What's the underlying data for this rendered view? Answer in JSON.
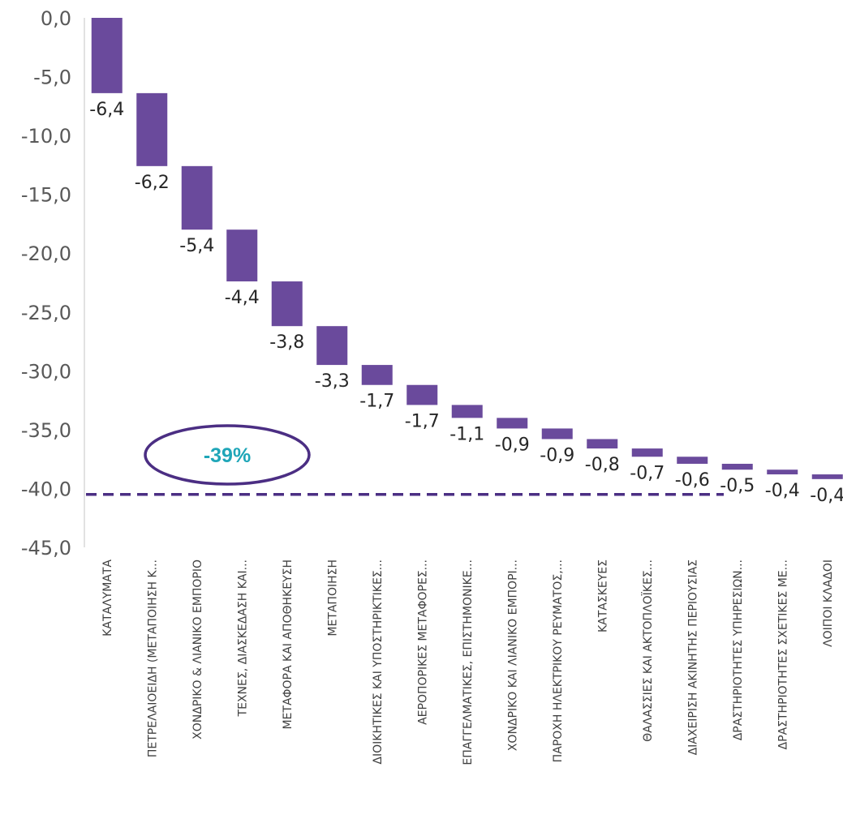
{
  "chart_data": {
    "type": "bar",
    "subtype": "waterfall",
    "title": "",
    "xlabel": "",
    "ylabel": "",
    "ylim": [
      -45,
      0
    ],
    "ytick_step": 5,
    "ytick_labels": [
      "0,0",
      "-5,0",
      "-10,0",
      "-15,0",
      "-20,0",
      "-25,0",
      "-30,0",
      "-35,0",
      "-40,0",
      "-45,0"
    ],
    "categories": [
      "ΚΑΤΑΛΥΜΑΤΑ",
      "ΠΕΤΡΕΛΑΙΟΕΙΔΗ (ΜΕΤΑΠΟΙΗΣΗ Κ...",
      "ΧΟΝΔΡΙΚΟ & ΛΙΑΝΙΚΟ ΕΜΠΟΡΙΟ",
      "ΤΕΧΝΕΣ, ΔΙΑΣΚΕΔΑΣΗ ΚΑΙ...",
      "ΜΕΤΑΦΟΡΑ ΚΑΙ ΑΠΟΘΗΚΕΥΣΗ",
      "ΜΕΤΑΠΟΙΗΣΗ",
      "ΔΙΟΙΚΗΤΙΚΕΣ ΚΑΙ ΥΠΟΣΤΗΡΙΚΤΙΚΕΣ...",
      "ΑΕΡΟΠΟΡΙΚΕΣ ΜΕΤΑΦΟΡΕΣ...",
      "ΕΠΑΓΓΕΛΜΑΤΙΚΕΣ, ΕΠΙΣΤΗΜΟΝΙΚΕ...",
      "ΧΟΝΔΡΙΚΟ ΚΑΙ ΛΙΑΝΙΚΟ ΕΜΠΟΡΙ...",
      "ΠΑΡΟΧΗ ΗΛΕΚΤΡΙΚΟΥ ΡΕΥΜΑΤΟΣ,...",
      "ΚΑΤΑΣΚΕΥΕΣ",
      "ΘΑΛΑΣΣΙΕΣ ΚΑΙ ΑΚΤΟΠΛΟΪΚΕΣ...",
      "ΔΙΑΧΕΙΡΙΣΗ ΑΚΙΝΗΤΗΣ ΠΕΡΙΟΥΣΙΑΣ",
      "ΔΡΑΣΤΗΡΙΟΤΗΤΕΣ ΥΠΗΡΕΣΙΩΝ...",
      "ΔΡΑΣΤΗΡΙΟΤΗΤΕΣ ΣΧΕΤΙΚΕΣ ΜΕ...",
      "ΛΟΙΠΟΙ ΚΛΑΔΟΙ"
    ],
    "values": [
      -6.4,
      -6.2,
      -5.4,
      -4.4,
      -3.8,
      -3.3,
      -1.7,
      -1.7,
      -1.1,
      -0.9,
      -0.9,
      -0.8,
      -0.7,
      -0.6,
      -0.5,
      -0.4,
      -0.4
    ],
    "value_labels": [
      "-6,4",
      "-6,2",
      "-5,4",
      "-4,4",
      "-3,8",
      "-3,3",
      "-1,7",
      "-1,7",
      "-1,1",
      "-0,9",
      "-0,9",
      "-0,8",
      "-0,7",
      "-0,6",
      "-0,5",
      "-0,4",
      "-0,4"
    ],
    "bar_color": "#6A4A9C",
    "reference_line": {
      "value": -40.5,
      "style": "dashed",
      "color": "#4B2E83"
    },
    "annotation": {
      "text": "-39%",
      "text_color": "#1FA6B8",
      "border_color": "#4B2E83",
      "shape": "ellipse"
    },
    "grid": false,
    "legend": "none"
  }
}
